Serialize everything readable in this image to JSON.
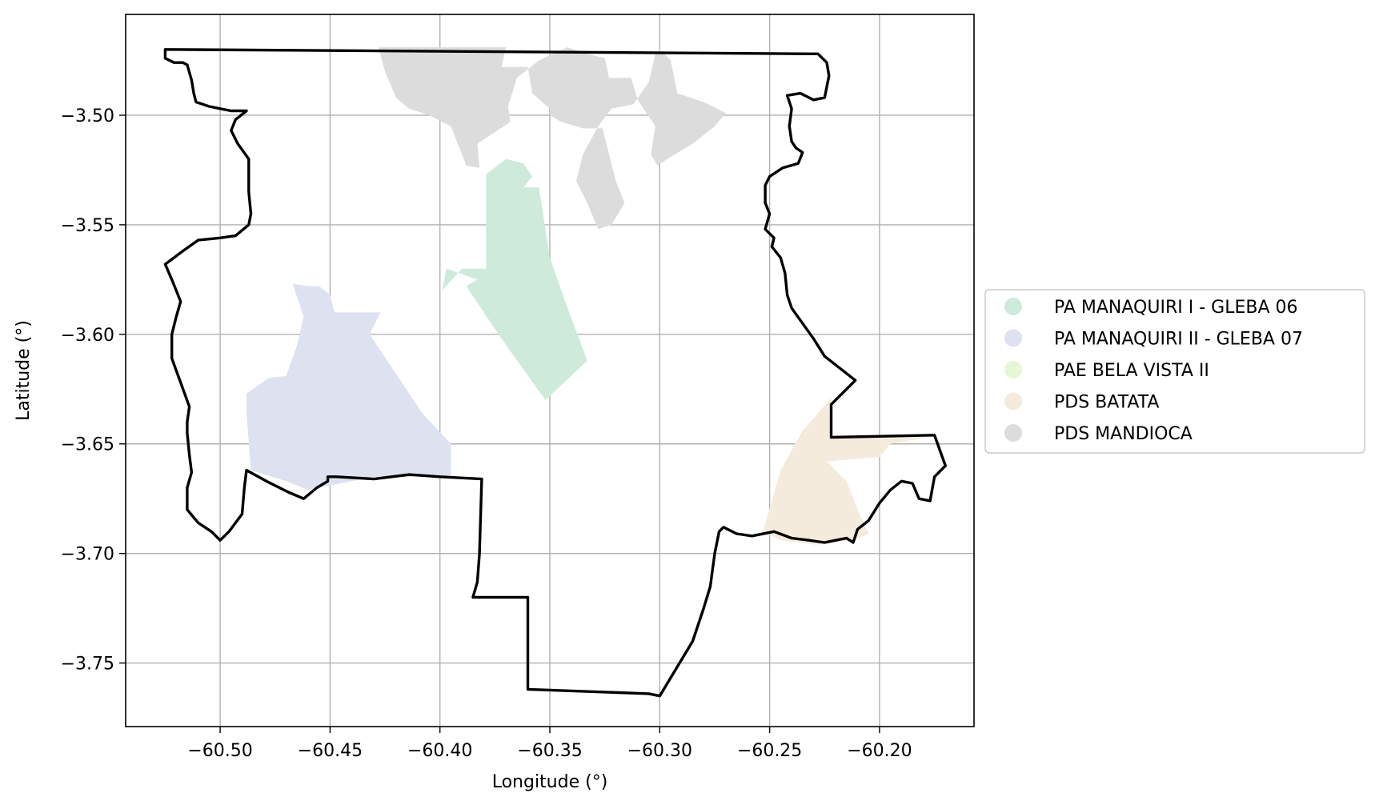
{
  "chart_data": {
    "type": "map",
    "xlabel": "Longitude (°)",
    "ylabel": "Latitude (°)",
    "xlim": [
      -60.543,
      -60.157
    ],
    "ylim": [
      -3.779,
      -3.454
    ],
    "x_ticks": [
      {
        "value": -60.5,
        "label": "−60.50"
      },
      {
        "value": -60.45,
        "label": "−60.45"
      },
      {
        "value": -60.4,
        "label": "−60.40"
      },
      {
        "value": -60.35,
        "label": "−60.35"
      },
      {
        "value": -60.3,
        "label": "−60.30"
      },
      {
        "value": -60.25,
        "label": "−60.25"
      },
      {
        "value": -60.2,
        "label": "−60.20"
      }
    ],
    "y_ticks": [
      {
        "value": -3.5,
        "label": "−3.50"
      },
      {
        "value": -3.55,
        "label": "−3.55"
      },
      {
        "value": -3.6,
        "label": "−3.60"
      },
      {
        "value": -3.65,
        "label": "−3.65"
      },
      {
        "value": -3.7,
        "label": "−3.70"
      },
      {
        "value": -3.75,
        "label": "−3.75"
      }
    ],
    "grid": true,
    "legend_position": "center-right",
    "boundary_color": "#000000",
    "legend": [
      {
        "label": "PA MANAQUIRI I - GLEBA 06",
        "color": "#cdeadb"
      },
      {
        "label": "PA MANAQUIRI II - GLEBA 07",
        "color": "#dde1f0"
      },
      {
        "label": "PAE BELA VISTA II",
        "color": "#e7f6d5"
      },
      {
        "label": "PDS BATATA",
        "color": "#f4ebdc"
      },
      {
        "label": "PDS MANDIOCA",
        "color": "#dcdcdc"
      }
    ],
    "regions": [
      {
        "name": "PDS MANDIOCA",
        "color": "#dcdcdc",
        "coords": [
          [
            -60.428,
            -3.469
          ],
          [
            -60.37,
            -3.469
          ],
          [
            -60.372,
            -3.478
          ],
          [
            -60.36,
            -3.478
          ],
          [
            -60.358,
            -3.49
          ],
          [
            -60.35,
            -3.497
          ],
          [
            -60.35,
            -3.5
          ],
          [
            -60.345,
            -3.503
          ],
          [
            -60.335,
            -3.506
          ],
          [
            -60.326,
            -3.506
          ],
          [
            -60.32,
            -3.53
          ],
          [
            -60.316,
            -3.54
          ],
          [
            -60.322,
            -3.55
          ],
          [
            -60.328,
            -3.552
          ],
          [
            -60.333,
            -3.54
          ],
          [
            -60.338,
            -3.53
          ],
          [
            -60.335,
            -3.518
          ],
          [
            -60.328,
            -3.505
          ],
          [
            -60.322,
            -3.497
          ],
          [
            -60.312,
            -3.495
          ],
          [
            -60.305,
            -3.485
          ],
          [
            -60.302,
            -3.472
          ],
          [
            -60.3,
            -3.47
          ],
          [
            -60.295,
            -3.475
          ],
          [
            -60.292,
            -3.49
          ],
          [
            -60.28,
            -3.494
          ],
          [
            -60.27,
            -3.499
          ],
          [
            -60.275,
            -3.505
          ],
          [
            -60.285,
            -3.513
          ],
          [
            -60.295,
            -3.519
          ],
          [
            -60.301,
            -3.523
          ],
          [
            -60.304,
            -3.518
          ],
          [
            -60.302,
            -3.505
          ],
          [
            -60.31,
            -3.493
          ],
          [
            -60.313,
            -3.483
          ],
          [
            -60.323,
            -3.483
          ],
          [
            -60.325,
            -3.474
          ],
          [
            -60.333,
            -3.472
          ],
          [
            -60.342,
            -3.469
          ],
          [
            -60.355,
            -3.475
          ],
          [
            -60.365,
            -3.483
          ],
          [
            -60.369,
            -3.496
          ],
          [
            -60.368,
            -3.503
          ],
          [
            -60.377,
            -3.509
          ],
          [
            -60.383,
            -3.513
          ],
          [
            -60.382,
            -3.524
          ],
          [
            -60.388,
            -3.523
          ],
          [
            -60.395,
            -3.505
          ],
          [
            -60.405,
            -3.5
          ],
          [
            -60.414,
            -3.497
          ],
          [
            -60.42,
            -3.492
          ],
          [
            -60.425,
            -3.48
          ],
          [
            -60.428,
            -3.469
          ]
        ]
      },
      {
        "name": "PA MANAQUIRI I - GLEBA 06",
        "color": "#cdeadb",
        "coords": [
          [
            -60.37,
            -3.52
          ],
          [
            -60.362,
            -3.522
          ],
          [
            -60.358,
            -3.528
          ],
          [
            -60.362,
            -3.533
          ],
          [
            -60.36,
            -3.533
          ],
          [
            -60.355,
            -3.533
          ],
          [
            -60.35,
            -3.565
          ],
          [
            -60.343,
            -3.585
          ],
          [
            -60.333,
            -3.612
          ],
          [
            -60.352,
            -3.63
          ],
          [
            -60.372,
            -3.602
          ],
          [
            -60.388,
            -3.578
          ],
          [
            -60.383,
            -3.575
          ],
          [
            -60.397,
            -3.57
          ],
          [
            -60.399,
            -3.58
          ],
          [
            -60.39,
            -3.57
          ],
          [
            -60.379,
            -3.57
          ],
          [
            -60.379,
            -3.527
          ],
          [
            -60.37,
            -3.52
          ]
        ]
      },
      {
        "name": "PA MANAQUIRI II - GLEBA 07",
        "color": "#dde1f0",
        "coords": [
          [
            -60.467,
            -3.577
          ],
          [
            -60.46,
            -3.578
          ],
          [
            -60.455,
            -3.578
          ],
          [
            -60.45,
            -3.582
          ],
          [
            -60.448,
            -3.59
          ],
          [
            -60.44,
            -3.59
          ],
          [
            -60.427,
            -3.59
          ],
          [
            -60.432,
            -3.6
          ],
          [
            -60.408,
            -3.636
          ],
          [
            -60.395,
            -3.65
          ],
          [
            -60.395,
            -3.665
          ],
          [
            -60.43,
            -3.665
          ],
          [
            -60.46,
            -3.671
          ],
          [
            -60.47,
            -3.667
          ],
          [
            -60.486,
            -3.662
          ],
          [
            -60.488,
            -3.636
          ],
          [
            -60.488,
            -3.627
          ],
          [
            -60.478,
            -3.62
          ],
          [
            -60.47,
            -3.619
          ],
          [
            -60.465,
            -3.605
          ],
          [
            -60.462,
            -3.592
          ],
          [
            -60.467,
            -3.577
          ]
        ]
      },
      {
        "name": "PDS BATATA",
        "color": "#f4ebdc",
        "coords": [
          [
            -60.222,
            -3.629
          ],
          [
            -60.235,
            -3.644
          ],
          [
            -60.245,
            -3.662
          ],
          [
            -60.253,
            -3.69
          ],
          [
            -60.245,
            -3.694
          ],
          [
            -60.229,
            -3.696
          ],
          [
            -60.212,
            -3.694
          ],
          [
            -60.205,
            -3.691
          ],
          [
            -60.21,
            -3.68
          ],
          [
            -60.215,
            -3.667
          ],
          [
            -60.224,
            -3.658
          ],
          [
            -60.212,
            -3.657
          ],
          [
            -60.2,
            -3.656
          ],
          [
            -60.195,
            -3.65
          ],
          [
            -60.178,
            -3.647
          ],
          [
            -60.205,
            -3.647
          ],
          [
            -60.222,
            -3.647
          ],
          [
            -60.222,
            -3.629
          ]
        ]
      }
    ],
    "boundary": [
      [
        -60.525,
        -3.47
      ],
      [
        -60.228,
        -3.472
      ],
      [
        -60.224,
        -3.476
      ],
      [
        -60.223,
        -3.482
      ],
      [
        -60.225,
        -3.492
      ],
      [
        -60.23,
        -3.493
      ],
      [
        -60.236,
        -3.49
      ],
      [
        -60.242,
        -3.491
      ],
      [
        -60.24,
        -3.497
      ],
      [
        -60.241,
        -3.505
      ],
      [
        -60.24,
        -3.512
      ],
      [
        -60.238,
        -3.515
      ],
      [
        -60.235,
        -3.517
      ],
      [
        -60.237,
        -3.522
      ],
      [
        -60.244,
        -3.524
      ],
      [
        -60.25,
        -3.528
      ],
      [
        -60.252,
        -3.532
      ],
      [
        -60.252,
        -3.54
      ],
      [
        -60.25,
        -3.545
      ],
      [
        -60.252,
        -3.552
      ],
      [
        -60.248,
        -3.556
      ],
      [
        -60.249,
        -3.56
      ],
      [
        -60.245,
        -3.565
      ],
      [
        -60.243,
        -3.572
      ],
      [
        -60.242,
        -3.582
      ],
      [
        -60.24,
        -3.588
      ],
      [
        -60.23,
        -3.602
      ],
      [
        -60.225,
        -3.61
      ],
      [
        -60.211,
        -3.621
      ],
      [
        -60.222,
        -3.632
      ],
      [
        -60.222,
        -3.647
      ],
      [
        -60.175,
        -3.646
      ],
      [
        -60.17,
        -3.66
      ],
      [
        -60.175,
        -3.665
      ],
      [
        -60.177,
        -3.676
      ],
      [
        -60.182,
        -3.675
      ],
      [
        -60.185,
        -3.668
      ],
      [
        -60.19,
        -3.667
      ],
      [
        -60.195,
        -3.671
      ],
      [
        -60.2,
        -3.677
      ],
      [
        -60.205,
        -3.685
      ],
      [
        -60.21,
        -3.689
      ],
      [
        -60.212,
        -3.695
      ],
      [
        -60.215,
        -3.693
      ],
      [
        -60.22,
        -3.694
      ],
      [
        -60.225,
        -3.695
      ],
      [
        -60.232,
        -3.694
      ],
      [
        -60.24,
        -3.693
      ],
      [
        -60.248,
        -3.69
      ],
      [
        -60.258,
        -3.692
      ],
      [
        -60.265,
        -3.691
      ],
      [
        -60.271,
        -3.688
      ],
      [
        -60.273,
        -3.69
      ],
      [
        -60.275,
        -3.7
      ],
      [
        -60.277,
        -3.715
      ],
      [
        -60.28,
        -3.725
      ],
      [
        -60.285,
        -3.74
      ],
      [
        -60.3,
        -3.765
      ],
      [
        -60.305,
        -3.764
      ],
      [
        -60.36,
        -3.762
      ],
      [
        -60.36,
        -3.72
      ],
      [
        -60.385,
        -3.72
      ],
      [
        -60.383,
        -3.713
      ],
      [
        -60.382,
        -3.7
      ],
      [
        -60.381,
        -3.666
      ],
      [
        -60.4,
        -3.665
      ],
      [
        -60.414,
        -3.664
      ],
      [
        -60.43,
        -3.666
      ],
      [
        -60.447,
        -3.665
      ],
      [
        -60.451,
        -3.665
      ],
      [
        -60.451,
        -3.667
      ],
      [
        -60.456,
        -3.67
      ],
      [
        -60.462,
        -3.675
      ],
      [
        -60.469,
        -3.672
      ],
      [
        -60.479,
        -3.667
      ],
      [
        -60.488,
        -3.662
      ],
      [
        -60.489,
        -3.67
      ],
      [
        -60.49,
        -3.682
      ],
      [
        -60.496,
        -3.69
      ],
      [
        -60.5,
        -3.694
      ],
      [
        -60.504,
        -3.69
      ],
      [
        -60.51,
        -3.686
      ],
      [
        -60.515,
        -3.68
      ],
      [
        -60.515,
        -3.67
      ],
      [
        -60.513,
        -3.663
      ],
      [
        -60.514,
        -3.655
      ],
      [
        -60.515,
        -3.645
      ],
      [
        -60.515,
        -3.64
      ],
      [
        -60.514,
        -3.633
      ],
      [
        -60.518,
        -3.622
      ],
      [
        -60.522,
        -3.611
      ],
      [
        -60.522,
        -3.6
      ],
      [
        -60.52,
        -3.592
      ],
      [
        -60.518,
        -3.585
      ],
      [
        -60.522,
        -3.575
      ],
      [
        -60.525,
        -3.568
      ],
      [
        -60.517,
        -3.562
      ],
      [
        -60.51,
        -3.557
      ],
      [
        -60.5,
        -3.556
      ],
      [
        -60.493,
        -3.555
      ],
      [
        -60.487,
        -3.55
      ],
      [
        -60.486,
        -3.545
      ],
      [
        -60.487,
        -3.535
      ],
      [
        -60.487,
        -3.52
      ],
      [
        -60.492,
        -3.513
      ],
      [
        -60.495,
        -3.507
      ],
      [
        -60.493,
        -3.502
      ],
      [
        -60.488,
        -3.498
      ],
      [
        -60.495,
        -3.498
      ],
      [
        -60.5,
        -3.497
      ],
      [
        -60.505,
        -3.496
      ],
      [
        -60.511,
        -3.494
      ],
      [
        -60.512,
        -3.49
      ],
      [
        -60.513,
        -3.484
      ],
      [
        -60.515,
        -3.477
      ],
      [
        -60.517,
        -3.476
      ],
      [
        -60.521,
        -3.476
      ],
      [
        -60.525,
        -3.474
      ],
      [
        -60.525,
        -3.47
      ]
    ]
  }
}
